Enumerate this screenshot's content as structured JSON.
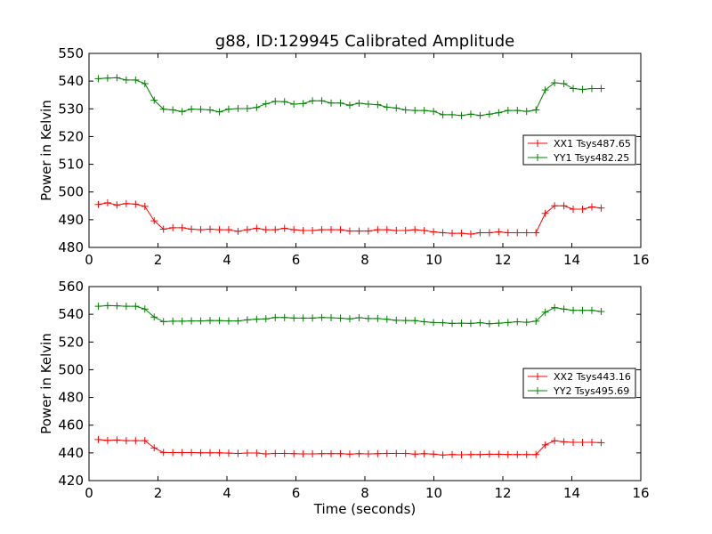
{
  "figure": {
    "title": "g88, ID:129945 Calibrated Amplitude"
  },
  "chart_data": [
    {
      "type": "line",
      "xlabel": "",
      "ylabel": "Power in Kelvin",
      "xlim": [
        0,
        16
      ],
      "ylim": [
        480,
        550
      ],
      "xticks": [
        "0",
        "2",
        "4",
        "6",
        "8",
        "10",
        "12",
        "14",
        "16"
      ],
      "yticks": [
        "480",
        "490",
        "500",
        "510",
        "520",
        "530",
        "540",
        "550"
      ],
      "legend_position": "center-right",
      "x": [
        0.27,
        0.54,
        0.81,
        1.08,
        1.35,
        1.62,
        1.89,
        2.16,
        2.43,
        2.7,
        2.97,
        3.24,
        3.51,
        3.78,
        4.05,
        4.32,
        4.59,
        4.86,
        5.13,
        5.4,
        5.67,
        5.94,
        6.21,
        6.48,
        6.75,
        7.02,
        7.29,
        7.56,
        7.83,
        8.1,
        8.37,
        8.64,
        8.91,
        9.18,
        9.45,
        9.72,
        9.99,
        10.26,
        10.53,
        10.8,
        11.07,
        11.34,
        11.61,
        11.88,
        12.15,
        12.42,
        12.69,
        12.96,
        13.23,
        13.5,
        13.77,
        14.04,
        14.31,
        14.58,
        14.85
      ],
      "series": [
        {
          "name": "XX1 Tsys487.65",
          "color": "#ff0000",
          "values": [
            495.5,
            496.1,
            495.3,
            495.8,
            495.6,
            494.8,
            489.6,
            486.6,
            487.1,
            487.1,
            486.6,
            486.4,
            486.6,
            486.4,
            486.4,
            485.8,
            486.4,
            486.9,
            486.4,
            486.4,
            486.9,
            486.4,
            486.1,
            486.1,
            486.4,
            486.4,
            486.4,
            485.9,
            485.9,
            485.9,
            486.4,
            486.4,
            486.1,
            486.1,
            486.4,
            486.1,
            485.6,
            485.3,
            485.1,
            485.1,
            484.8,
            485.3,
            485.3,
            485.6,
            485.3,
            485.3,
            485.3,
            485.3,
            492.3,
            495.0,
            495.0,
            493.8,
            493.8,
            494.6,
            494.2
          ]
        },
        {
          "name": "YY1 Tsys482.25",
          "color": "#008000",
          "values": [
            540.9,
            541.1,
            541.2,
            540.4,
            540.4,
            539.1,
            533.1,
            529.9,
            529.6,
            529.0,
            529.9,
            529.8,
            529.6,
            528.9,
            529.9,
            530.1,
            530.1,
            530.5,
            531.8,
            532.7,
            532.6,
            531.7,
            531.9,
            532.9,
            532.9,
            532.1,
            532.1,
            531.3,
            532.0,
            531.7,
            531.5,
            530.6,
            530.3,
            529.6,
            529.4,
            529.4,
            529.1,
            527.9,
            527.9,
            527.6,
            528.1,
            527.6,
            528.1,
            528.6,
            529.4,
            529.4,
            529.1,
            529.6,
            536.8,
            539.4,
            539.1,
            537.3,
            537.0,
            537.3,
            537.3
          ]
        }
      ]
    },
    {
      "type": "line",
      "xlabel": "Time (seconds)",
      "ylabel": "Power in Kelvin",
      "xlim": [
        0,
        16
      ],
      "ylim": [
        420,
        560
      ],
      "xticks": [
        "0",
        "2",
        "4",
        "6",
        "8",
        "10",
        "12",
        "14",
        "16"
      ],
      "yticks": [
        "420",
        "440",
        "460",
        "480",
        "500",
        "520",
        "540",
        "560"
      ],
      "legend_position": "center-right",
      "x": [
        0.27,
        0.54,
        0.81,
        1.08,
        1.35,
        1.62,
        1.89,
        2.16,
        2.43,
        2.7,
        2.97,
        3.24,
        3.51,
        3.78,
        4.05,
        4.32,
        4.59,
        4.86,
        5.13,
        5.4,
        5.67,
        5.94,
        6.21,
        6.48,
        6.75,
        7.02,
        7.29,
        7.56,
        7.83,
        8.1,
        8.37,
        8.64,
        8.91,
        9.18,
        9.45,
        9.72,
        9.99,
        10.26,
        10.53,
        10.8,
        11.07,
        11.34,
        11.61,
        11.88,
        12.15,
        12.42,
        12.69,
        12.96,
        13.23,
        13.5,
        13.77,
        14.04,
        14.31,
        14.58,
        14.85
      ],
      "series": [
        {
          "name": "XX2 Tsys443.16",
          "color": "#ff0000",
          "values": [
            449.6,
            449.0,
            449.3,
            448.8,
            448.8,
            448.8,
            443.6,
            440.3,
            440.2,
            440.2,
            440.2,
            440.1,
            440.1,
            440.1,
            439.8,
            439.6,
            439.9,
            439.9,
            439.3,
            439.6,
            439.6,
            439.4,
            439.3,
            439.3,
            439.4,
            439.4,
            439.4,
            439.1,
            439.4,
            439.3,
            439.4,
            439.6,
            439.6,
            439.6,
            439.1,
            439.4,
            439.1,
            438.5,
            438.8,
            438.6,
            438.8,
            438.8,
            439.0,
            439.0,
            438.8,
            438.8,
            438.8,
            438.8,
            445.8,
            448.7,
            448.0,
            447.6,
            447.6,
            447.6,
            447.4
          ]
        },
        {
          "name": "YY2 Tsys495.69",
          "color": "#008000",
          "values": [
            545.8,
            546.3,
            546.1,
            545.8,
            545.8,
            543.8,
            538.0,
            534.7,
            535.0,
            535.0,
            535.2,
            535.2,
            535.5,
            535.4,
            535.2,
            535.2,
            536.0,
            536.5,
            536.7,
            537.7,
            537.7,
            537.3,
            537.3,
            537.3,
            537.7,
            537.5,
            537.2,
            536.7,
            537.5,
            537.0,
            537.0,
            536.4,
            535.7,
            535.5,
            535.4,
            534.6,
            534.1,
            533.9,
            533.4,
            533.6,
            533.4,
            533.9,
            533.2,
            533.6,
            534.1,
            534.6,
            534.2,
            535.0,
            541.5,
            544.8,
            543.8,
            542.8,
            542.8,
            542.8,
            542.0
          ]
        }
      ]
    }
  ]
}
